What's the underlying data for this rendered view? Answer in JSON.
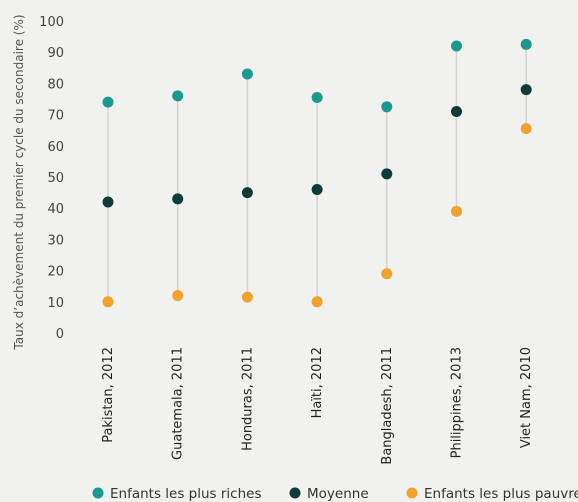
{
  "chart_data": {
    "type": "scatter",
    "ylabel": "Taux d’achèvement du premier cycle du secondaire (%)",
    "ylim": [
      0,
      100
    ],
    "yticks": [
      0,
      10,
      20,
      30,
      40,
      50,
      60,
      70,
      80,
      90,
      100
    ],
    "grid": false,
    "legend_position": "bottom",
    "categories": [
      "Pakistan, 2012",
      "Guatemala, 2011",
      "Honduras, 2011",
      "Haïti, 2012",
      "Bangladesh, 2011",
      "Philippines, 2013",
      "Viet Nam, 2010"
    ],
    "series": [
      {
        "name": "Enfants les plus riches",
        "color": "#1a9a8e",
        "values": [
          74,
          76,
          83,
          75.5,
          72.5,
          92,
          92.5
        ]
      },
      {
        "name": "Moyenne",
        "color": "#0c3b3a",
        "values": [
          42,
          43,
          45,
          46,
          51,
          71,
          78
        ]
      },
      {
        "name": "Enfants les plus pauvres",
        "color": "#f2a12c",
        "values": [
          10,
          12,
          11.5,
          10,
          19,
          39,
          65.5
        ]
      }
    ],
    "range_line_color": "#d3d3d3"
  }
}
